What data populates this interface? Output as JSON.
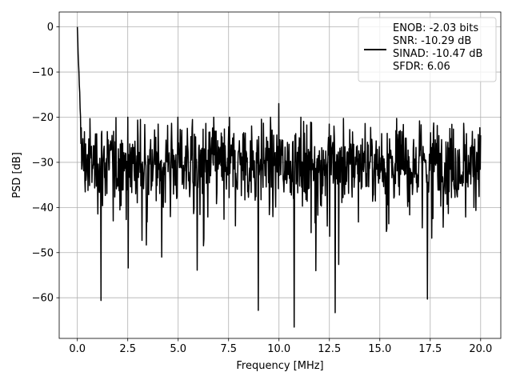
{
  "chart_data": {
    "type": "line",
    "xlabel": "Frequency [MHz]",
    "ylabel": "PSD [dB]",
    "xlim": [
      -0.9,
      21.0
    ],
    "ylim": [
      -69.0,
      3.3
    ],
    "xticks": [
      0.0,
      2.5,
      5.0,
      7.5,
      10.0,
      12.5,
      15.0,
      17.5,
      20.0
    ],
    "xtick_labels": [
      "0.0",
      "2.5",
      "5.0",
      "7.5",
      "10.0",
      "12.5",
      "15.0",
      "17.5",
      "20.0"
    ],
    "yticks": [
      0,
      -10,
      -20,
      -30,
      -40,
      -50,
      -60
    ],
    "ytick_labels": [
      "0",
      "−10",
      "−20",
      "−30",
      "−40",
      "−50",
      "−60"
    ],
    "grid": true,
    "legend_position": "top-right",
    "legend_lines": [
      "ENOB: -2.03 bits",
      "SNR: -10.29 dB",
      "SINAD: -10.47 dB",
      "SFDR: 6.06"
    ],
    "series": [
      {
        "color": "#000000",
        "x_start": 0.0,
        "x_end": 20.0,
        "num_points": 1024,
        "peak": {
          "x": 0.0,
          "y": 0.0
        },
        "noise_floor_mean_db": -30.0,
        "noise_upper_envelope_db": -20.0,
        "noise_lower_envelope_db": -45.0,
        "notable_points": [
          {
            "x": 0.04,
            "y": -6.0
          },
          {
            "x": 0.08,
            "y": -10.0
          },
          {
            "x": 1.17,
            "y": -60.6
          },
          {
            "x": 2.52,
            "y": -53.4
          },
          {
            "x": 4.18,
            "y": -51.0
          },
          {
            "x": 5.95,
            "y": -53.9
          },
          {
            "x": 8.98,
            "y": -62.8
          },
          {
            "x": 9.99,
            "y": -17.0
          },
          {
            "x": 10.76,
            "y": -66.5
          },
          {
            "x": 11.82,
            "y": -54.0
          },
          {
            "x": 12.78,
            "y": -63.3
          },
          {
            "x": 17.36,
            "y": -60.3
          },
          {
            "x": 20.0,
            "y": -24.0
          }
        ]
      }
    ]
  },
  "colors": {
    "line": "#000000",
    "grid": "#b0b0b0",
    "axes": "#000000",
    "legend_border": "#cccccc"
  }
}
